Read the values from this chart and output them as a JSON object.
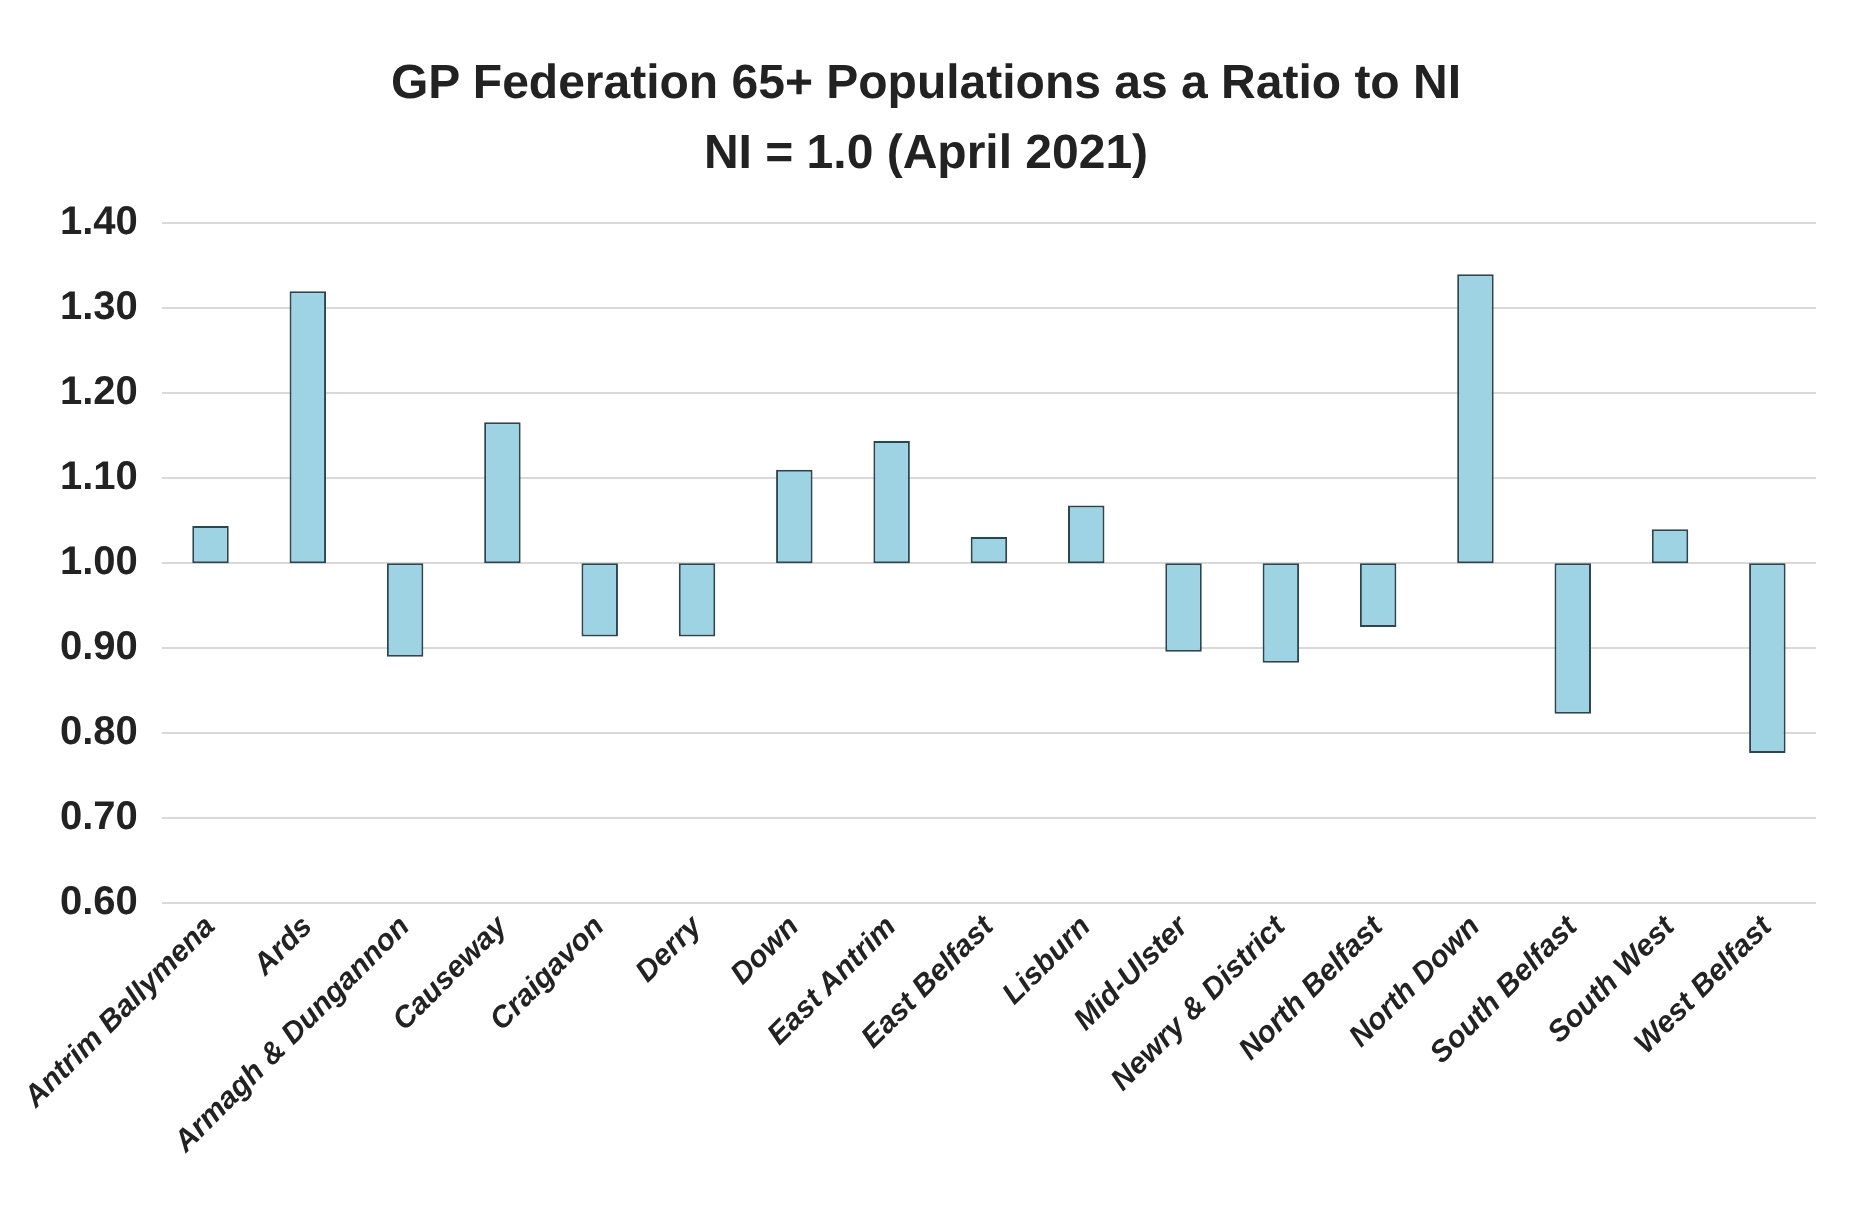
{
  "chart_data": {
    "type": "bar",
    "title": "GP Federation 65+ Populations as a Ratio to NI",
    "subtitle": "NI = 1.0 (April 2021)",
    "categories": [
      "Antrim Ballymena",
      "Ards",
      "Armagh & Dungannon",
      "Causeway",
      "Craigavon",
      "Derry",
      "Down",
      "East Antrim",
      "East Belfast",
      "Lisburn",
      "Mid-Ulster",
      "Newry & District",
      "North Belfast",
      "North Down",
      "South Belfast",
      "South West",
      "West Belfast"
    ],
    "base": [
      1,
      1,
      1,
      1,
      1,
      1,
      1,
      1,
      1,
      1,
      1,
      1,
      1,
      1,
      1,
      1,
      1
    ],
    "values": [
      0.044,
      0.32,
      -0.11,
      0.166,
      -0.086,
      -0.086,
      0.11,
      0.144,
      0.031,
      0.068,
      -0.104,
      -0.117,
      -0.075,
      0.34,
      -0.177,
      0.04,
      -0.223
    ],
    "color": "#9dd3e3",
    "ylim": [
      0.6,
      1.4
    ],
    "yticks": [
      {
        "value": 0.6,
        "label": "0.60"
      },
      {
        "value": 0.7,
        "label": "0.70"
      },
      {
        "value": 0.8,
        "label": "0.80"
      },
      {
        "value": 0.9,
        "label": "0.90"
      },
      {
        "value": 1.0,
        "label": "1.00"
      },
      {
        "value": 1.1,
        "label": "1.10"
      },
      {
        "value": 1.2,
        "label": "1.20"
      },
      {
        "value": 1.3,
        "label": "1.30"
      },
      {
        "value": 1.4,
        "label": "1.40"
      }
    ],
    "grid": "y",
    "legend": false
  }
}
